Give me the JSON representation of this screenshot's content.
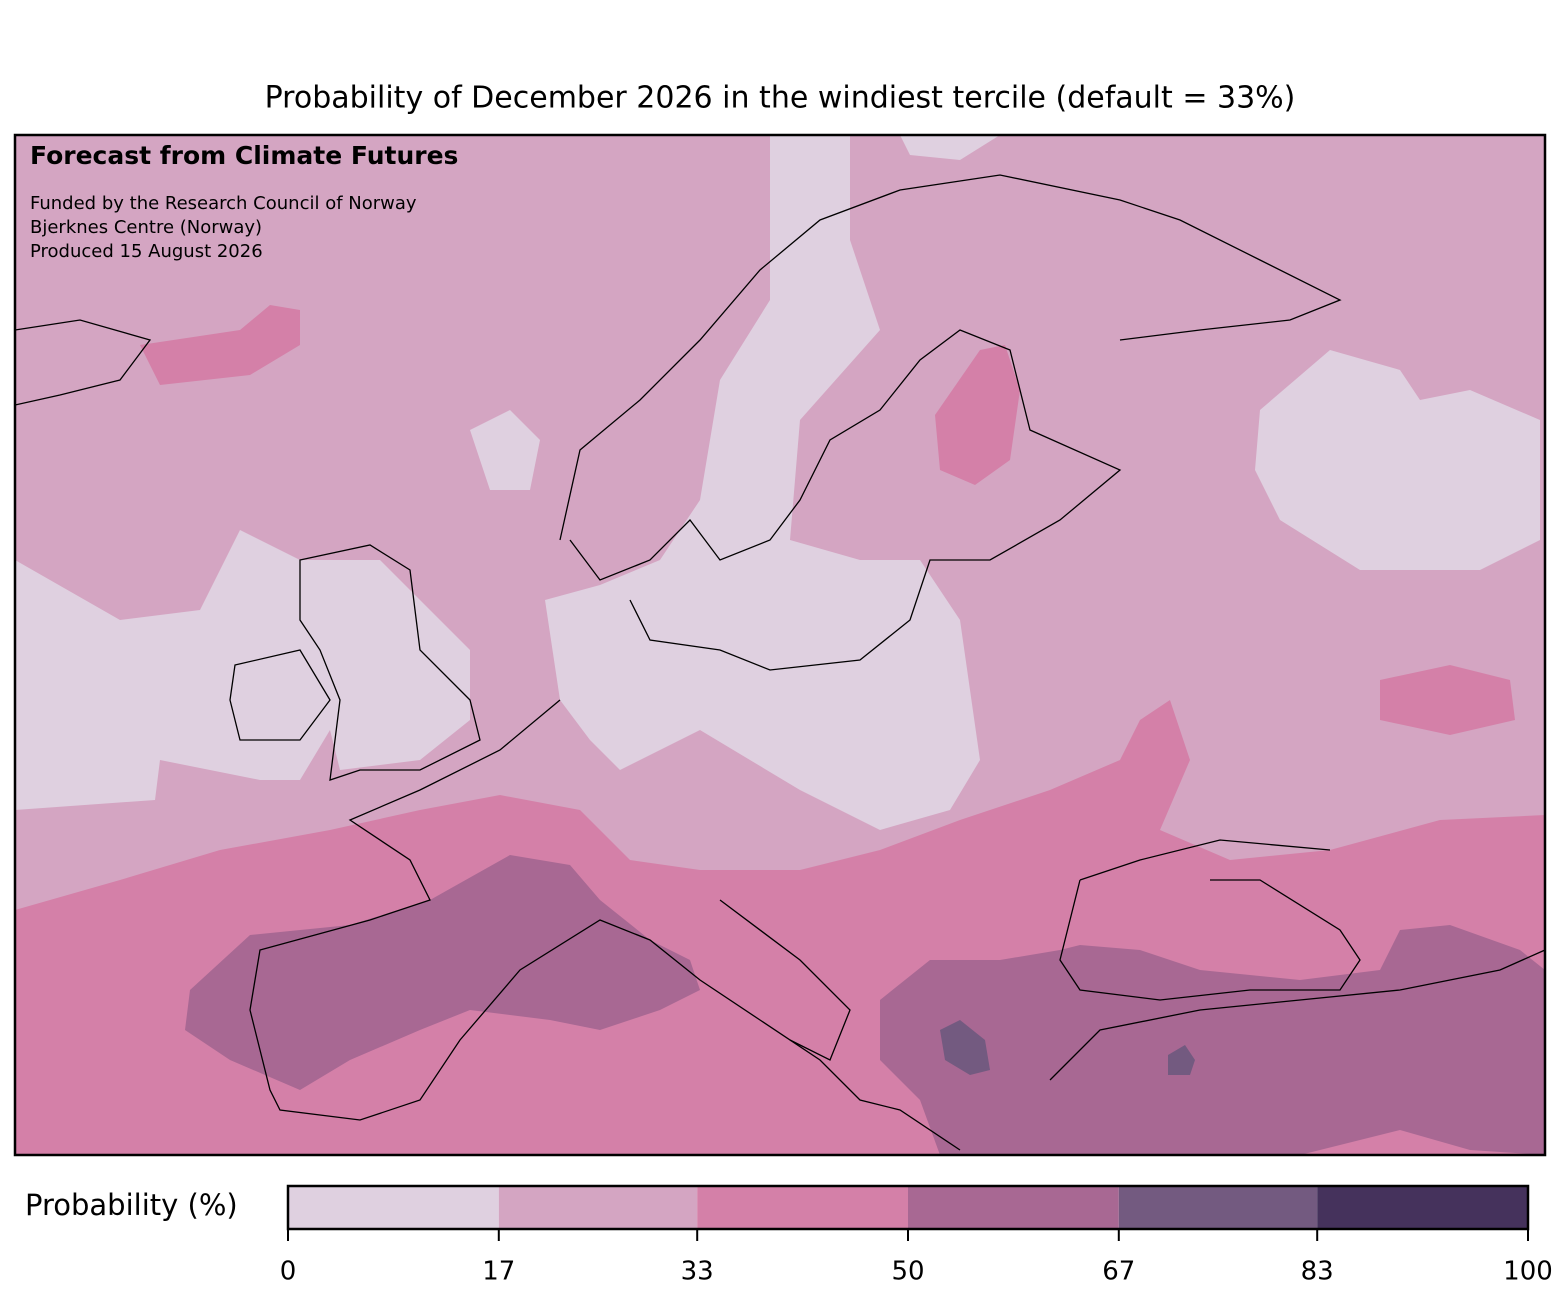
{
  "title": "Probability of December 2026 in the windiest tercile (default = 33%)",
  "annotation": {
    "heading": "Forecast from Climate Futures",
    "lines": [
      "Funded by the Research Council of Norway",
      "Bjerknes Centre (Norway)",
      "Produced 15 August 2026"
    ]
  },
  "colorbar": {
    "label": "Probability (%)",
    "lim": [
      0,
      100
    ],
    "ticks": [
      0,
      17,
      33,
      50,
      67,
      83,
      100
    ],
    "colors": [
      "#dfd0e0",
      "#d4a5c2",
      "#d480a8",
      "#a86893",
      "#735a80",
      "#45325c"
    ]
  }
}
